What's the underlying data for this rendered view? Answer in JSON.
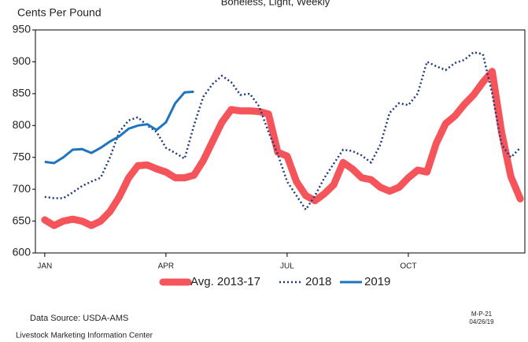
{
  "chart_data": {
    "type": "line",
    "title": "Boneless, Light, Weekly",
    "y_label": "Cents Per Pound",
    "x": [
      1,
      2,
      3,
      4,
      5,
      6,
      7,
      8,
      9,
      10,
      11,
      12,
      13,
      14,
      15,
      16,
      17,
      18,
      19,
      20,
      21,
      22,
      23,
      24,
      25,
      26,
      27,
      28,
      29,
      30,
      31,
      32,
      33,
      34,
      35,
      36,
      37,
      38,
      39,
      40,
      41,
      42,
      43,
      44,
      45,
      46,
      47,
      48,
      49,
      50,
      51,
      52
    ],
    "xlim": [
      0,
      52.5
    ],
    "xticks": [
      {
        "value": 1,
        "label": "JAN"
      },
      {
        "value": 14,
        "label": "APR"
      },
      {
        "value": 27,
        "label": "JUL"
      },
      {
        "value": 40,
        "label": "OCT"
      }
    ],
    "ylim": [
      600,
      950
    ],
    "yticks": [
      600,
      650,
      700,
      750,
      800,
      850,
      900,
      950
    ],
    "series": [
      {
        "name": "Avg. 2013-17",
        "color": "#f4545a",
        "style": "thick",
        "values": [
          652,
          643,
          650,
          653,
          650,
          643,
          650,
          665,
          688,
          718,
          737,
          738,
          732,
          727,
          718,
          718,
          722,
          745,
          775,
          805,
          825,
          823,
          823,
          822,
          818,
          758,
          752,
          712,
          690,
          682,
          693,
          707,
          742,
          732,
          718,
          715,
          703,
          697,
          703,
          718,
          730,
          727,
          772,
          803,
          815,
          833,
          848,
          868,
          885,
          790,
          720,
          685
        ]
      },
      {
        "name": "2018",
        "color": "#1f3a7a",
        "style": "dotted",
        "values": [
          688,
          686,
          686,
          695,
          705,
          712,
          718,
          750,
          790,
          808,
          813,
          800,
          790,
          765,
          757,
          748,
          800,
          845,
          865,
          878,
          868,
          848,
          850,
          830,
          790,
          755,
          712,
          690,
          668,
          690,
          718,
          740,
          762,
          760,
          753,
          742,
          770,
          820,
          835,
          832,
          850,
          900,
          893,
          887,
          898,
          903,
          915,
          912,
          850,
          770,
          750,
          765
        ]
      },
      {
        "name": "2019",
        "color": "#1f74c0",
        "style": "solid",
        "values": [
          743,
          741,
          750,
          762,
          763,
          757,
          765,
          775,
          783,
          795,
          800,
          802,
          793,
          805,
          835,
          852,
          853,
          null,
          null,
          null,
          null,
          null,
          null,
          null,
          null,
          null,
          null,
          null,
          null,
          null,
          null,
          null,
          null,
          null,
          null,
          null,
          null,
          null,
          null,
          null,
          null,
          null,
          null,
          null,
          null,
          null,
          null,
          null,
          null,
          null,
          null,
          null
        ]
      }
    ],
    "source": "Data Source:  USDA-AMS",
    "org": "Livestock Marketing Information Center",
    "code": "M-P-21",
    "date": "04/26/19"
  }
}
